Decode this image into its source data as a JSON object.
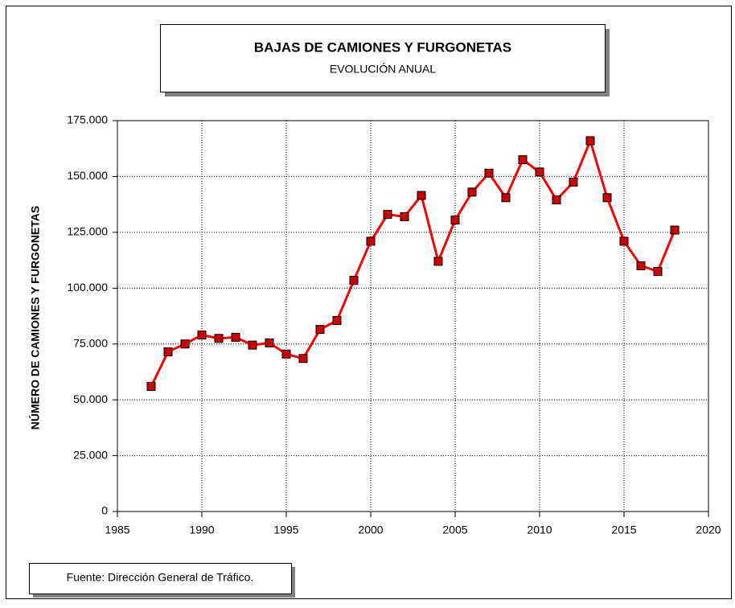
{
  "chart_data": {
    "type": "line",
    "title": "BAJAS DE CAMIONES Y FURGONETAS",
    "subtitle": "EVOLUCIÓN ANUAL",
    "y_label": "NÚMERO DE CAMIONES Y FURGONETAS",
    "source": "Fuente: Dirección General de Tráfico.",
    "x": [
      1987,
      1988,
      1989,
      1990,
      1991,
      1992,
      1993,
      1994,
      1995,
      1996,
      1997,
      1998,
      1999,
      2000,
      2001,
      2002,
      2003,
      2004,
      2005,
      2006,
      2007,
      2008,
      2009,
      2010,
      2011,
      2012,
      2013,
      2014,
      2015,
      2016,
      2017,
      2018
    ],
    "series": [
      {
        "color": "#ff0000",
        "marker_color": "#cc0000",
        "values": [
          56000,
          71500,
          75000,
          79000,
          77500,
          78000,
          74500,
          75500,
          70500,
          68500,
          81500,
          85500,
          103500,
          121000,
          133000,
          132000,
          141500,
          112000,
          130500,
          143000,
          151500,
          140500,
          157500,
          152000,
          139500,
          147500,
          166000,
          140500,
          121000,
          110000,
          107500,
          126000
        ]
      }
    ],
    "xlim": [
      1985,
      2020
    ],
    "xticks": [
      1985,
      1990,
      1995,
      2000,
      2005,
      2010,
      2015,
      2020
    ],
    "ylim": [
      0,
      175000
    ],
    "yticks": [
      0,
      {
        "value": 25000,
        "label": "25.000"
      },
      {
        "value": 50000,
        "label": "50.000"
      },
      {
        "value": 75000,
        "label": "75.000"
      },
      {
        "value": 100000,
        "label": "100.000"
      },
      {
        "value": 125000,
        "label": "125.000"
      },
      {
        "value": 150000,
        "label": "150.000"
      },
      {
        "value": 175000,
        "label": "175.000"
      }
    ],
    "grid": true
  }
}
